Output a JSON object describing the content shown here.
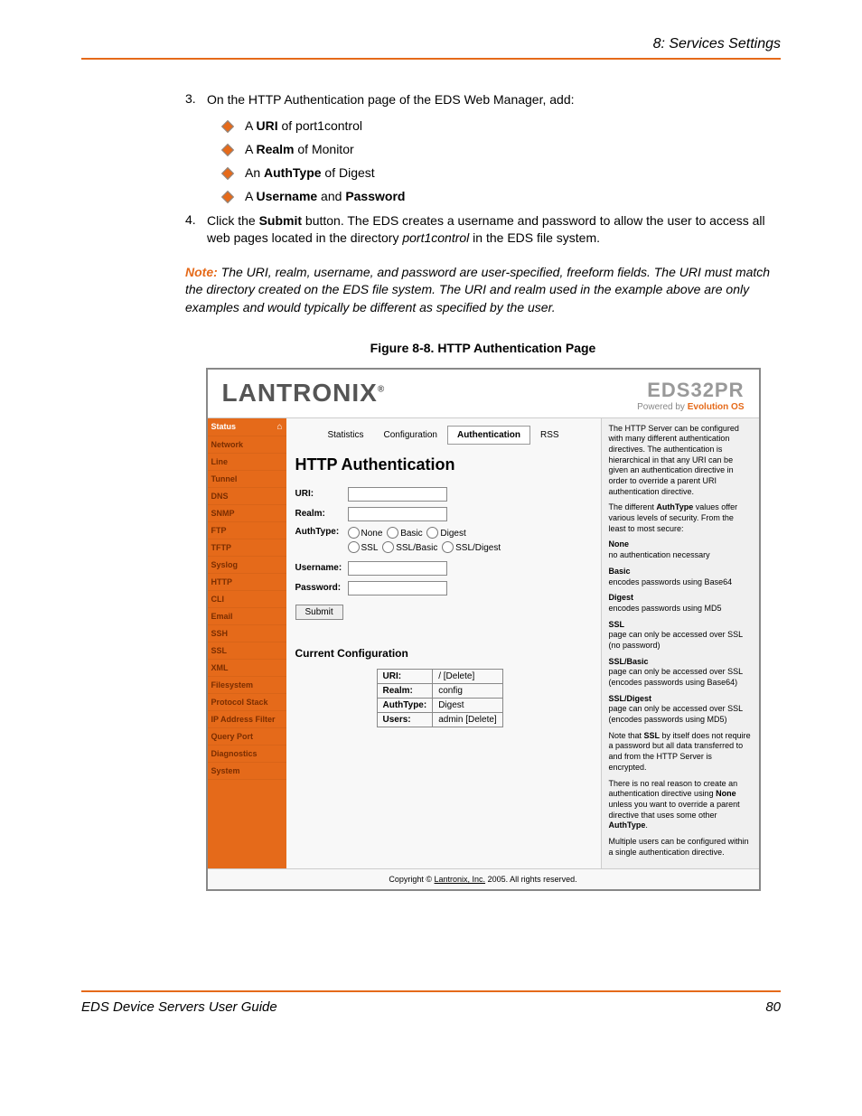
{
  "header": {
    "chapter": "8: Services Settings"
  },
  "steps": {
    "s3": {
      "num": "3.",
      "text_before": "On the HTTP Authentication page of the EDS Web Manager, add:",
      "bullets": {
        "b1_pre": "A ",
        "b1_bold": "URI",
        "b1_post": " of port1control",
        "b2_pre": "A ",
        "b2_bold": "Realm",
        "b2_post": " of Monitor",
        "b3_pre": "An ",
        "b3_bold": "AuthType",
        "b3_post": " of Digest",
        "b4_pre": " A ",
        "b4_bold1": "Username",
        "b4_mid": " and ",
        "b4_bold2": "Password"
      }
    },
    "s4": {
      "num": "4.",
      "t1": "Click the ",
      "t2": "Submit",
      "t3": " button. The EDS creates a username and password to allow the user to access all web pages located in the directory ",
      "t4": "port1control",
      "t5": " in the EDS file system."
    }
  },
  "note": {
    "label": "Note:",
    "text": " The URI, realm, username, and password are user-specified, freeform fields. The URI must match the directory created on the EDS file system. The URI and realm used in the example above are only examples and would typically be different as specified by the user."
  },
  "figure_caption": "Figure 8-8. HTTP Authentication Page",
  "screenshot": {
    "brand": "LANTRONIX",
    "model": "EDS32PR",
    "tagline_pre": "Powered by ",
    "tagline_bold": "Evolution OS",
    "sidebar": {
      "items": [
        {
          "label": "Status",
          "first": true
        },
        {
          "label": "Network"
        },
        {
          "label": "Line"
        },
        {
          "label": "Tunnel"
        },
        {
          "label": "DNS"
        },
        {
          "label": "SNMP"
        },
        {
          "label": "FTP"
        },
        {
          "label": "TFTP"
        },
        {
          "label": "Syslog"
        },
        {
          "label": "HTTP"
        },
        {
          "label": "CLI"
        },
        {
          "label": "Email"
        },
        {
          "label": "SSH"
        },
        {
          "label": "SSL"
        },
        {
          "label": "XML"
        },
        {
          "label": "Filesystem"
        },
        {
          "label": "Protocol Stack"
        },
        {
          "label": "IP Address Filter"
        },
        {
          "label": "Query Port"
        },
        {
          "label": "Diagnostics"
        },
        {
          "label": "System"
        }
      ]
    },
    "tabs": {
      "t1": "Statistics",
      "t2": "Configuration",
      "t3": "Authentication",
      "t4": "RSS"
    },
    "main": {
      "title": "HTTP Authentication",
      "labels": {
        "uri": "URI:",
        "realm": "Realm:",
        "authtype": "AuthType:",
        "username": "Username:",
        "password": "Password:"
      },
      "radios": {
        "r1": "None",
        "r2": "Basic",
        "r3": "Digest",
        "r4": "SSL",
        "r5": "SSL/Basic",
        "r6": "SSL/Digest"
      },
      "submit": "Submit",
      "config_title": "Current Configuration",
      "table": {
        "r1l": "URI:",
        "r1v": "/ [Delete]",
        "r2l": "Realm:",
        "r2v": "config",
        "r3l": "AuthType:",
        "r3v": "Digest",
        "r4l": "Users:",
        "r4v": "admin [Delete]"
      }
    },
    "help": {
      "p1": "The HTTP Server can be configured with many different authentication directives. The authentication is hierarchical in that any URI can be given an authentication directive in order to override a parent URI authentication directive.",
      "p2a": "The different ",
      "p2b": "AuthType",
      "p2c": " values offer various levels of security. From the least to most secure:",
      "none_l": "None",
      "none_t": "no authentication necessary",
      "basic_l": "Basic",
      "basic_t": "encodes passwords using Base64",
      "digest_l": "Digest",
      "digest_t": "encodes passwords using MD5",
      "ssl_l": "SSL",
      "ssl_t": "page can only be accessed over SSL (no password)",
      "sslb_l": "SSL/Basic",
      "sslb_t": "page can only be accessed over SSL (encodes passwords using Base64)",
      "ssld_l": "SSL/Digest",
      "ssld_t": "page can only be accessed over SSL (encodes passwords using MD5)",
      "p3a": "Note that ",
      "p3b": "SSL",
      "p3c": " by itself does not require a password but all data transferred to and from the HTTP Server is encrypted.",
      "p4a": "There is no real reason to create an authentication directive using ",
      "p4b": "None",
      "p4c": " unless you want to override a parent directive that uses some other ",
      "p4d": "AuthType",
      "p4e": ".",
      "p5": "Multiple users can be configured within a single authentication directive."
    },
    "copyright_pre": "Copyright © ",
    "copyright_link": "Lantronix, Inc.",
    "copyright_post": " 2005. All rights reserved."
  },
  "footer": {
    "guide": "EDS Device Servers User Guide",
    "page": "80"
  }
}
